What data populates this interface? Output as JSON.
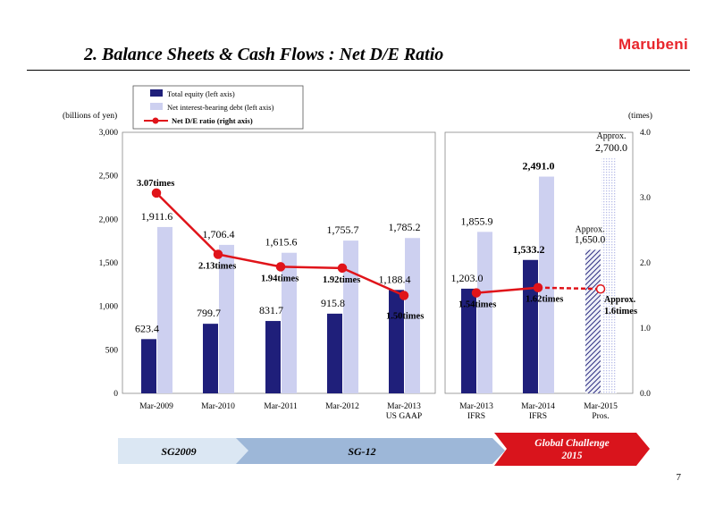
{
  "header": {
    "title": "2.  Balance Sheets & Cash Flows : Net D/E Ratio",
    "logo": "Marubeni"
  },
  "page_number": "7",
  "colors": {
    "equity": "#1f1f7a",
    "debt": "#cdd0f0",
    "ratio": "#e0141a",
    "banner_light": "#dbe7f3",
    "banner_mid": "#9db7d8",
    "banner_red": "#d9141c"
  },
  "chart_data": {
    "type": "bar",
    "left_unit": "(billions of yen)",
    "right_unit": "(times)",
    "ylim_left": [
      0,
      3000
    ],
    "ylim_right": [
      0.0,
      4.0
    ],
    "left_ticks": [
      "0",
      "500",
      "1,000",
      "1,500",
      "2,000",
      "2,500",
      "3,000"
    ],
    "right_ticks": [
      "0.0",
      "1.0",
      "2.0",
      "3.0",
      "4.0"
    ],
    "legend": {
      "equity": "Total equity (left axis)",
      "debt": "Net interest-bearing debt (left axis)",
      "ratio": "Net D/E ratio (right axis)"
    },
    "groups": [
      {
        "categories": [
          [
            "Mar-2009"
          ],
          [
            "Mar-2010"
          ],
          [
            "Mar-2011"
          ],
          [
            "Mar-2012"
          ],
          [
            "Mar-2013",
            "US GAAP"
          ]
        ],
        "equity": [
          623.4,
          799.7,
          831.7,
          915.8,
          1188.4
        ],
        "equity_labels": [
          "623.4",
          "799.7",
          "831.7",
          "915.8",
          "1,188.4"
        ],
        "debt": [
          1911.6,
          1706.4,
          1615.6,
          1755.7,
          1785.2
        ],
        "debt_labels": [
          "1,911.6",
          "1,706.4",
          "1,615.6",
          "1,755.7",
          "1,785.2"
        ],
        "ratio": [
          3.07,
          2.13,
          1.94,
          1.92,
          1.5
        ],
        "ratio_labels": [
          "3.07times",
          "2.13times",
          "1.94times",
          "1.92times",
          "1.50times"
        ]
      },
      {
        "categories": [
          [
            "Mar-2013",
            "IFRS"
          ],
          [
            "Mar-2014",
            "IFRS"
          ],
          [
            "Mar-2015",
            "Pros."
          ]
        ],
        "equity": [
          1203.0,
          1533.2,
          1650.0
        ],
        "equity_labels": [
          "1,203.0",
          "1,533.2",
          "1,650.0"
        ],
        "debt": [
          1855.9,
          2491.0,
          2700.0
        ],
        "debt_labels": [
          "1,855.9",
          "2,491.0",
          "2,700.0"
        ],
        "ratio": [
          1.54,
          1.62,
          1.6
        ],
        "ratio_labels": [
          "1.54times",
          "1.62times",
          "1.6times"
        ],
        "approx_label": "Approx.",
        "projected_last": true
      }
    ]
  },
  "banner": {
    "segments": [
      "SG2009",
      "SG-12",
      "Global  Challenge 2015"
    ]
  }
}
